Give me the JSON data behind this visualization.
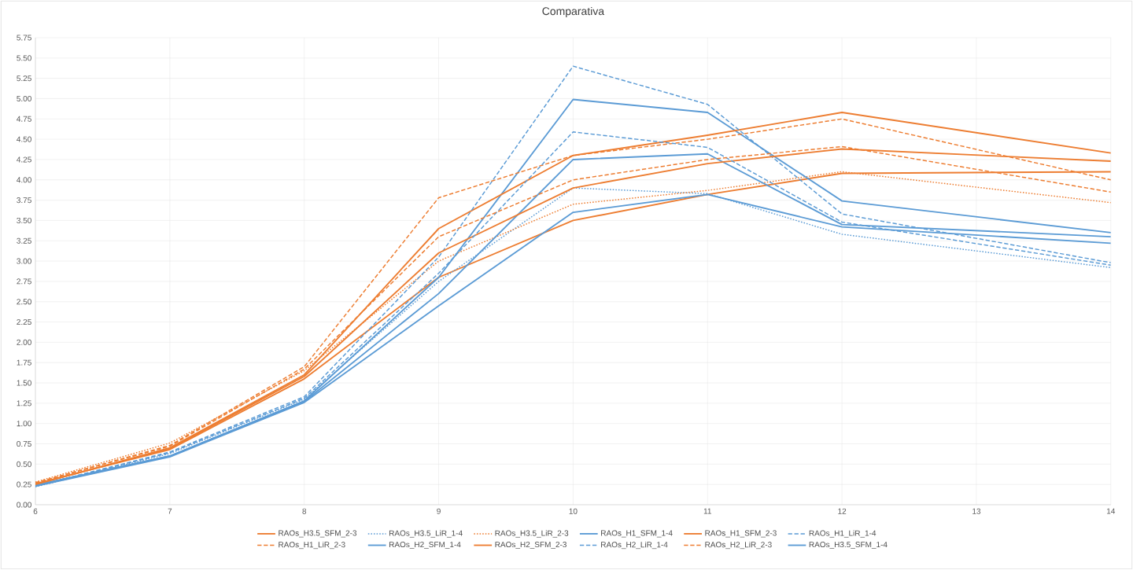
{
  "chart_data": {
    "type": "line",
    "title": "Comparativa",
    "x": [
      6,
      7,
      8,
      9,
      10,
      11,
      12,
      14
    ],
    "xlim": [
      6,
      14
    ],
    "xticks": [
      6,
      7,
      8,
      9,
      10,
      11,
      12,
      13,
      14
    ],
    "ylim": [
      0,
      5.75
    ],
    "yticks": [
      {
        "value": 0,
        "label": "0.00"
      },
      {
        "value": 0.25,
        "label": "0.25"
      },
      {
        "value": 0.5,
        "label": "0.50"
      },
      {
        "value": 0.75,
        "label": "0.75"
      },
      {
        "value": 1,
        "label": "1.00"
      },
      {
        "value": 1.25,
        "label": "1.25"
      },
      {
        "value": 1.5,
        "label": "1.50"
      },
      {
        "value": 1.75,
        "label": "1.75"
      },
      {
        "value": 2,
        "label": "2.00"
      },
      {
        "value": 2.25,
        "label": "2.25"
      },
      {
        "value": 2.5,
        "label": "2.50"
      },
      {
        "value": 2.75,
        "label": "2.75"
      },
      {
        "value": 3,
        "label": "3.00"
      },
      {
        "value": 3.25,
        "label": "3.25"
      },
      {
        "value": 3.5,
        "label": "3.50"
      },
      {
        "value": 3.75,
        "label": "3.75"
      },
      {
        "value": 4,
        "label": "4.00"
      },
      {
        "value": 4.25,
        "label": "4.25"
      },
      {
        "value": 4.5,
        "label": "4.50"
      },
      {
        "value": 4.75,
        "label": "4.75"
      },
      {
        "value": 5,
        "label": "5.00"
      },
      {
        "value": 5.25,
        "label": "5.25"
      },
      {
        "value": 5.5,
        "label": "5.50"
      },
      {
        "value": 5.75,
        "label": "5.75"
      }
    ],
    "grid": true,
    "legend": "bottom",
    "marker": "none",
    "series": [
      {
        "name": "RAOs_H3.5_SFM_2-3",
        "color": "#ed7d31",
        "line_style": "solid",
        "values": [
          0.26,
          0.68,
          1.55,
          2.8,
          3.5,
          3.82,
          4.08,
          4.1
        ]
      },
      {
        "name": "RAOs_H3.5_LiR_1-4",
        "color": "#5b9bd5",
        "line_style": "dotted",
        "values": [
          0.22,
          0.63,
          1.3,
          2.75,
          3.9,
          3.83,
          3.33,
          2.92
        ]
      },
      {
        "name": "RAOs_H3.5_LiR_2-3",
        "color": "#ed7d31",
        "line_style": "dotted",
        "values": [
          0.28,
          0.76,
          1.65,
          3.0,
          3.7,
          3.87,
          4.1,
          3.72
        ]
      },
      {
        "name": "RAOs_H1_SFM_1-4",
        "color": "#5b9bd5",
        "line_style": "solid",
        "values": [
          0.24,
          0.6,
          1.28,
          2.8,
          4.99,
          4.83,
          3.74,
          3.35
        ]
      },
      {
        "name": "RAOs_H1_SFM_2-3",
        "color": "#ed7d31",
        "line_style": "solid",
        "values": [
          0.25,
          0.7,
          1.6,
          3.4,
          4.3,
          4.55,
          4.83,
          4.33
        ]
      },
      {
        "name": "RAOs_H1_LiR_1-4",
        "color": "#5b9bd5",
        "line_style": "dashed",
        "values": [
          0.23,
          0.65,
          1.33,
          3.05,
          5.4,
          4.93,
          3.58,
          2.98
        ]
      },
      {
        "name": "RAOs_H1_LiR_2-3",
        "color": "#ed7d31",
        "line_style": "dashed",
        "values": [
          0.27,
          0.73,
          1.7,
          3.78,
          4.3,
          4.5,
          4.75,
          4.0
        ]
      },
      {
        "name": "RAOs_H2_SFM_1-4",
        "color": "#5b9bd5",
        "line_style": "solid",
        "values": [
          0.24,
          0.6,
          1.27,
          2.6,
          4.25,
          4.32,
          3.45,
          3.3
        ]
      },
      {
        "name": "RAOs_H2_SFM_2-3",
        "color": "#ed7d31",
        "line_style": "solid",
        "values": [
          0.25,
          0.69,
          1.58,
          3.1,
          3.9,
          4.2,
          4.38,
          4.23
        ]
      },
      {
        "name": "RAOs_H2_LiR_1-4",
        "color": "#5b9bd5",
        "line_style": "dashed",
        "values": [
          0.23,
          0.64,
          1.31,
          2.85,
          4.59,
          4.4,
          3.48,
          2.95
        ]
      },
      {
        "name": "RAOs_H2_LiR_2-3",
        "color": "#ed7d31",
        "line_style": "dashed",
        "values": [
          0.27,
          0.72,
          1.67,
          3.3,
          4.0,
          4.25,
          4.41,
          3.85
        ]
      },
      {
        "name": "RAOs_H3.5_SFM_1-4",
        "color": "#5b9bd5",
        "line_style": "solid",
        "values": [
          0.23,
          0.59,
          1.26,
          2.45,
          3.6,
          3.82,
          3.42,
          3.22
        ]
      }
    ]
  }
}
